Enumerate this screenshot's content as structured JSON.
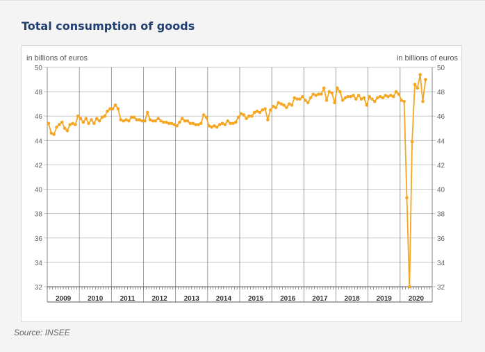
{
  "title": "Total consumption of goods",
  "source": "Source: INSEE",
  "colors": {
    "line": "#f5a623",
    "title": "#1f3f73",
    "grid": "#c8c8c8",
    "axis": "#555555"
  },
  "chart_data": {
    "type": "line",
    "title": "Total consumption of goods",
    "ylabel_left": "in billions of euros",
    "ylabel_right": "in billions of euros",
    "ylim": [
      32,
      50
    ],
    "yticks": [
      32,
      34,
      36,
      38,
      40,
      42,
      44,
      46,
      48,
      50
    ],
    "years": [
      "2009",
      "2010",
      "2011",
      "2012",
      "2013",
      "2014",
      "2015",
      "2016",
      "2017",
      "2018",
      "2019",
      "2020"
    ],
    "frequency": "monthly",
    "x_start": "2009-01",
    "grid": true,
    "series": [
      {
        "values": [
          45.4,
          44.6,
          44.5,
          45.1,
          45.3,
          45.5,
          45.0,
          44.8,
          45.3,
          45.4,
          45.3,
          46.0,
          45.8,
          45.5,
          45.8,
          45.4,
          45.7,
          45.4,
          45.8,
          45.6,
          45.9,
          46.0,
          46.4,
          46.6,
          46.6,
          46.9,
          46.6,
          45.7,
          45.6,
          45.7,
          45.6,
          45.9,
          45.9,
          45.7,
          45.7,
          45.6,
          45.6,
          46.3,
          45.7,
          45.6,
          45.6,
          45.8,
          45.6,
          45.5,
          45.5,
          45.4,
          45.4,
          45.3,
          45.2,
          45.5,
          45.8,
          45.6,
          45.6,
          45.4,
          45.4,
          45.3,
          45.3,
          45.4,
          46.1,
          45.9,
          45.2,
          45.1,
          45.2,
          45.1,
          45.3,
          45.4,
          45.3,
          45.6,
          45.4,
          45.4,
          45.5,
          45.9,
          46.2,
          46.1,
          45.8,
          46.0,
          46.0,
          46.3,
          46.4,
          46.3,
          46.5,
          46.6,
          45.7,
          46.5,
          46.8,
          46.7,
          47.1,
          47.0,
          46.9,
          46.7,
          47.0,
          46.9,
          47.5,
          47.4,
          47.4,
          47.6,
          47.3,
          47.1,
          47.5,
          47.8,
          47.7,
          47.8,
          47.8,
          48.3,
          47.3,
          48.0,
          47.9,
          47.1,
          48.3,
          48.0,
          47.3,
          47.5,
          47.6,
          47.6,
          47.7,
          47.4,
          47.7,
          47.4,
          47.5,
          46.9,
          47.6,
          47.4,
          47.2,
          47.5,
          47.6,
          47.5,
          47.7,
          47.6,
          47.7,
          47.6,
          48.0,
          47.8,
          47.3,
          47.2,
          39.3,
          32.0,
          43.9,
          48.6,
          48.3,
          49.4,
          47.2,
          49.0
        ]
      }
    ]
  }
}
